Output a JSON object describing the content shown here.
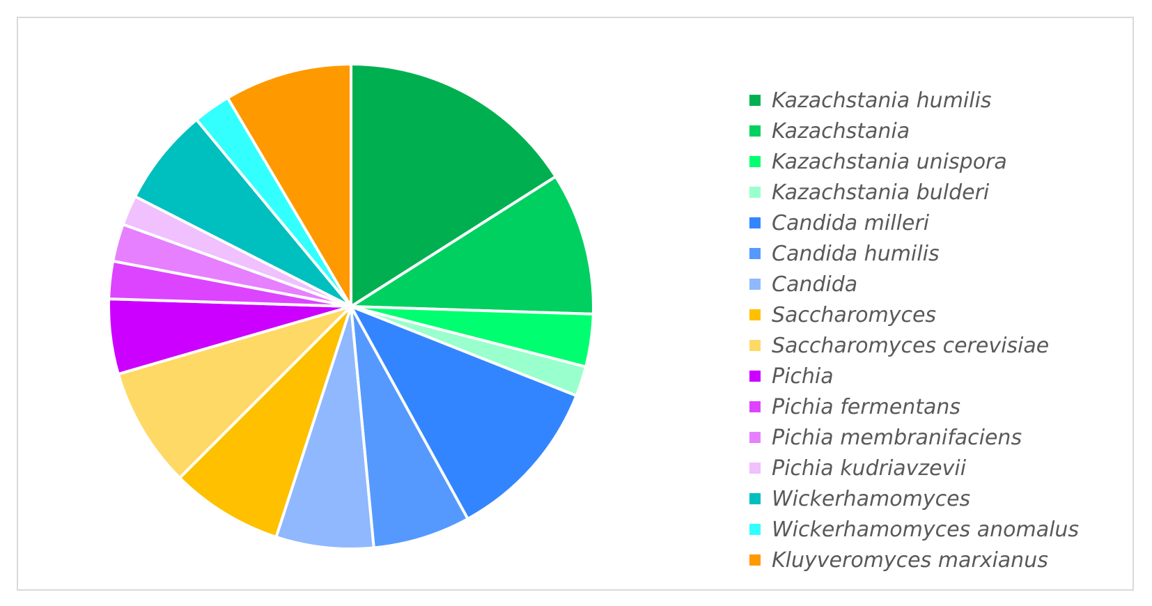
{
  "chart_data": {
    "type": "pie",
    "legend_position": "right",
    "slices": [
      {
        "label": "Kazachstania humilis",
        "value": 16.0,
        "color": "#00B050"
      },
      {
        "label": "Kazachstania",
        "value": 9.5,
        "color": "#00D060"
      },
      {
        "label": "Kazachstania unispora",
        "value": 3.5,
        "color": "#00FF70"
      },
      {
        "label": "Kazachstania bulderi",
        "value": 2.0,
        "color": "#99FFCC"
      },
      {
        "label": "Candida milleri",
        "value": 11.0,
        "color": "#3385FF"
      },
      {
        "label": "Candida humilis",
        "value": 6.5,
        "color": "#5599FF"
      },
      {
        "label": "Candida",
        "value": 6.5,
        "color": "#8FB8FF"
      },
      {
        "label": "Saccharomyces",
        "value": 7.5,
        "color": "#FFC000"
      },
      {
        "label": "Saccharomyces cerevisiae",
        "value": 8.0,
        "color": "#FFD966"
      },
      {
        "label": "Pichia",
        "value": 5.0,
        "color": "#CC00FF"
      },
      {
        "label": "Pichia fermentans",
        "value": 2.5,
        "color": "#DD44FF"
      },
      {
        "label": "Pichia membranifaciens",
        "value": 2.5,
        "color": "#E680FF"
      },
      {
        "label": "Pichia kudriavzevii",
        "value": 2.0,
        "color": "#F0C0FF"
      },
      {
        "label": "Wickerhamomyces",
        "value": 6.5,
        "color": "#00BFBF"
      },
      {
        "label": "Wickerhamomyces anomalus",
        "value": 2.5,
        "color": "#33FFFF"
      },
      {
        "label": "Kluyveromyces marxianus",
        "value": 8.5,
        "color": "#FF9900"
      }
    ]
  }
}
